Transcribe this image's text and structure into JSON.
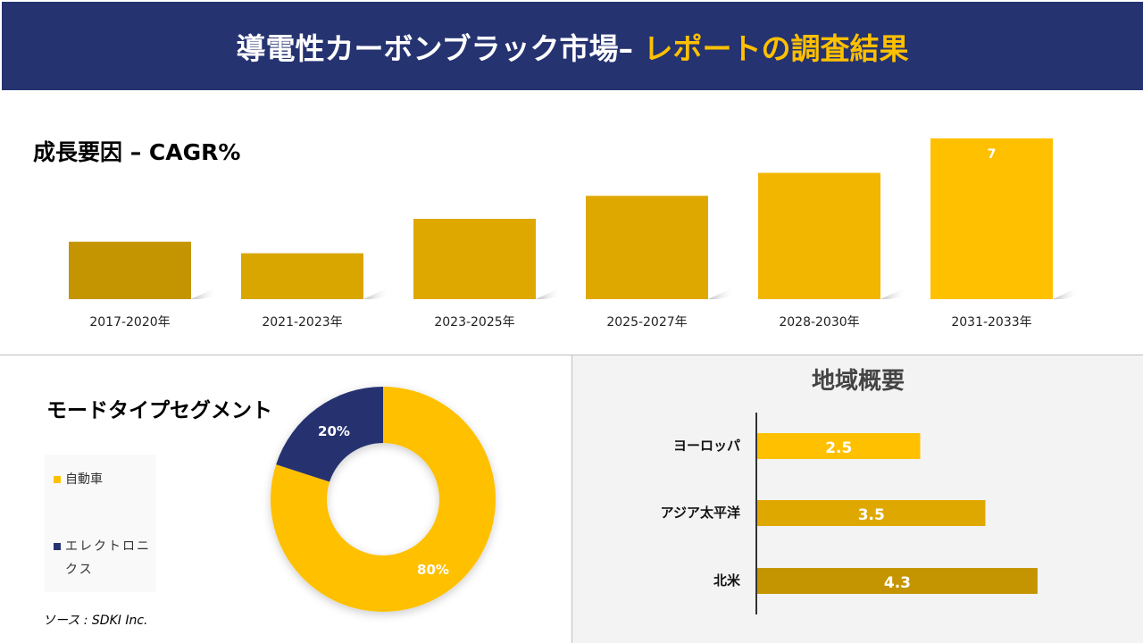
{
  "header": {
    "title_main": "導電性カーボンブラック市場–",
    "title_highlight": "レポートの調査結果"
  },
  "colors": {
    "navy": "#253370",
    "gold": "#FFC000",
    "gold_mid": "#DFA800",
    "gold_dark": "#C49500"
  },
  "chart_data": [
    {
      "type": "bar",
      "title": "成長要因 – CAGR%",
      "categories": [
        "2017-2020年",
        "2021-2023年",
        "2023-2025年",
        "2025-2027年",
        "2028-2030年",
        "2031-2033年"
      ],
      "values": [
        2.5,
        2.0,
        3.5,
        4.5,
        5.5,
        7
      ],
      "data_labels": [
        "",
        "",
        "",
        "",
        "",
        "7"
      ],
      "colors": [
        "#C49500",
        "#D9A600",
        "#DFA800",
        "#DFA800",
        "#F2B500",
        "#FFC000"
      ]
    },
    {
      "type": "pie",
      "title": "モードタイプセグメント",
      "donut": true,
      "slices": [
        {
          "name": "自動車",
          "value": 80,
          "label": "80%",
          "color": "#FFC000"
        },
        {
          "name": "エレクトロニクス",
          "value": 20,
          "label": "20%",
          "color": "#253370"
        }
      ],
      "legend": "left"
    },
    {
      "type": "bar",
      "orientation": "horizontal",
      "title": "地域概要",
      "categories": [
        "ヨーロッパ",
        "アジア太平洋",
        "北米"
      ],
      "values": [
        2.5,
        3.5,
        4.3
      ],
      "data_labels": [
        "2.5",
        "3.5",
        "4.3"
      ],
      "colors": [
        "#FFC000",
        "#DFA800",
        "#C49500"
      ]
    }
  ],
  "source": "ソース : SDKI Inc."
}
